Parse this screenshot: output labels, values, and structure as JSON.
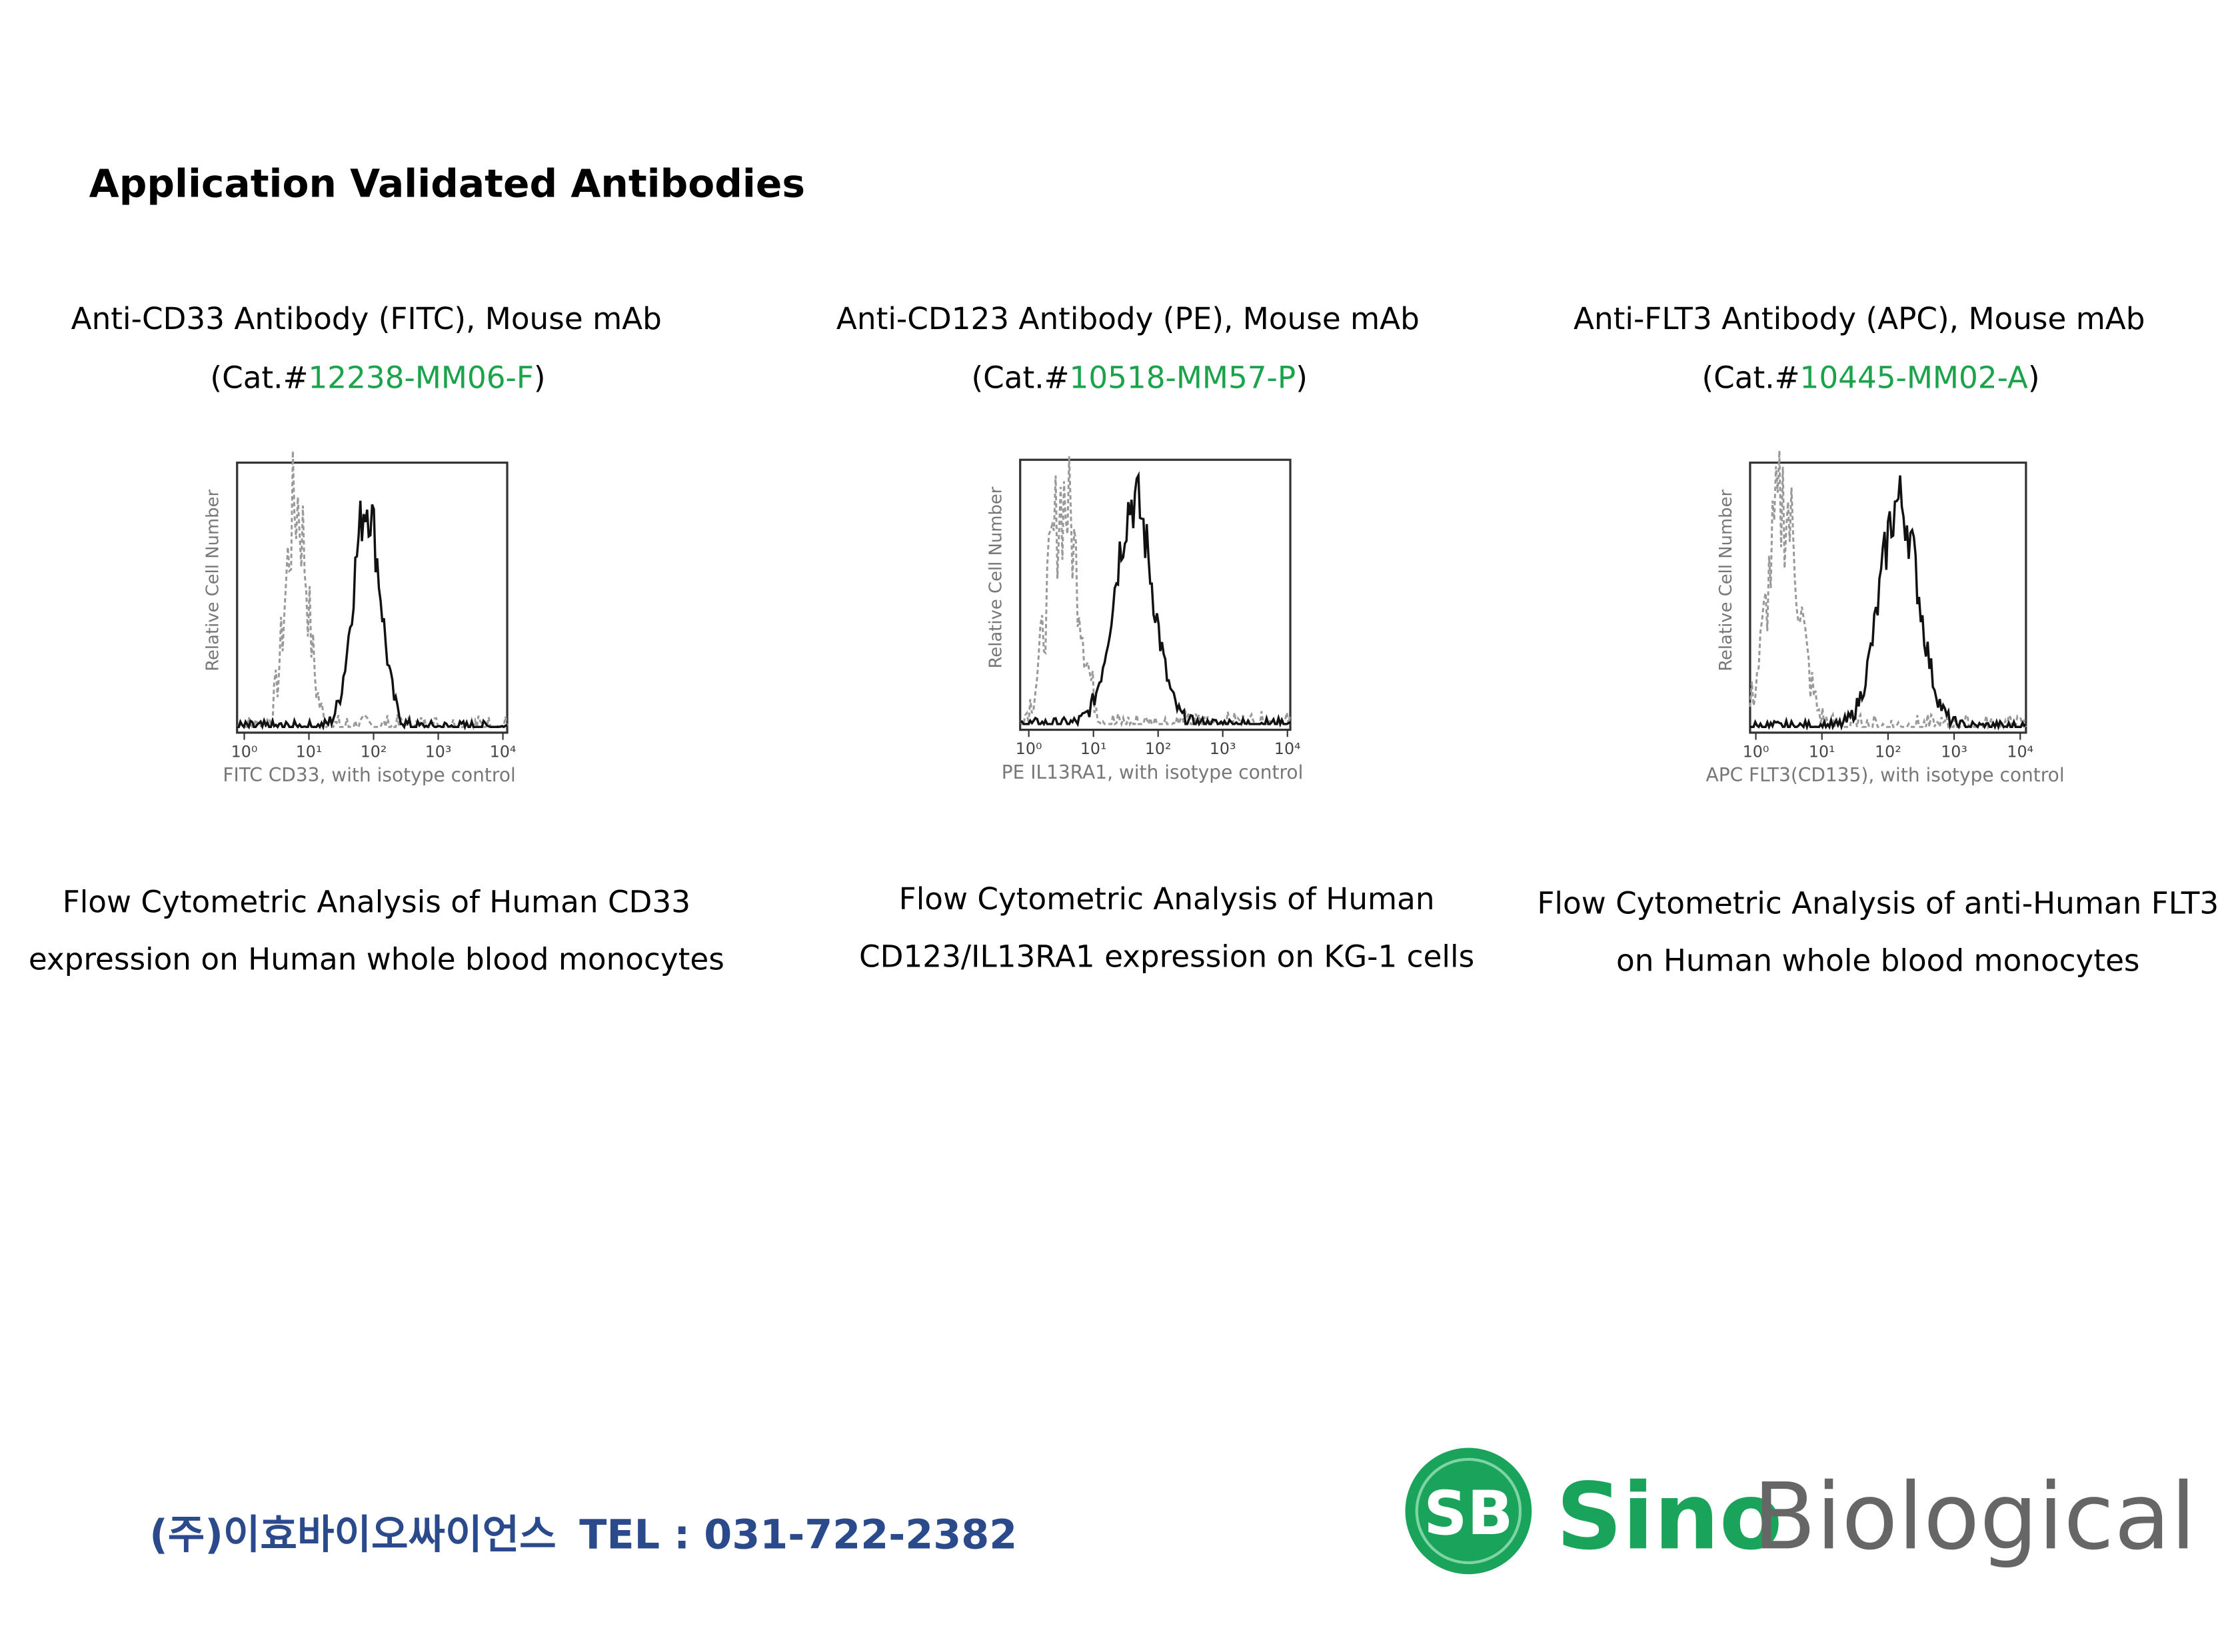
{
  "title": "Application Validated Antibodies",
  "panels": [
    {
      "name": "Anti-CD33 Antibody (FITC), Mouse mAb",
      "cat_prefix": "(Cat.#",
      "cat": "12238-MM06-F",
      "cat_suffix": ")",
      "y_label": "Relative Cell Number",
      "x_label": "FITC CD33, with isotype control",
      "x_ticks": [
        "10⁰",
        "10¹",
        "10²",
        "10³",
        "10⁴"
      ],
      "caption": [
        "Flow Cytometric Analysis of Human CD33",
        "expression on Human whole blood monocytes"
      ]
    },
    {
      "name": "Anti-CD123 Antibody (PE), Mouse mAb",
      "cat_prefix": "(Cat.#",
      "cat": "10518-MM57-P",
      "cat_suffix": ")",
      "y_label": "Relative Cell Number",
      "x_label": "PE IL13RA1, with isotype control",
      "x_ticks": [
        "10⁰",
        "10¹",
        "10²",
        "10³",
        "10⁴"
      ],
      "caption": [
        "Flow Cytometric Analysis of Human",
        "CD123/IL13RA1 expression on KG-1 cells"
      ]
    },
    {
      "name": "Anti-FLT3 Antibody (APC), Mouse mAb",
      "cat_prefix": "(Cat.#",
      "cat": "10445-MM02-A",
      "cat_suffix": ")",
      "y_label": "Relative Cell Number",
      "x_label": "APC FLT3(CD135), with isotype control",
      "x_ticks": [
        "10⁰",
        "10¹",
        "10²",
        "10³",
        "10⁴"
      ],
      "caption": [
        "Flow Cytometric Analysis of anti-Human FLT3",
        "on Human whole blood monocytes"
      ]
    }
  ],
  "footer": {
    "company": "(주)이효바이오싸이언스",
    "tel": "TEL : 031-722-2382"
  },
  "logo": {
    "badge": "SB",
    "word1": "Sino",
    "word2": "Biological"
  }
}
